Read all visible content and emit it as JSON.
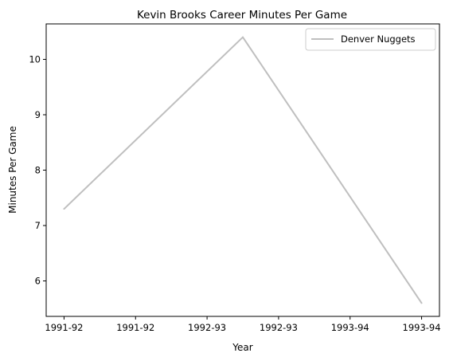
{
  "chart_data": {
    "type": "line",
    "title": "Kevin Brooks  Career Minutes Per Game",
    "xlabel": "Year",
    "ylabel": "Minutes Per Game",
    "x": [
      0,
      1,
      2
    ],
    "x_tick_positions": [
      0,
      0.4,
      0.8,
      1.2,
      1.6,
      2.0
    ],
    "x_tick_labels": [
      "1991-92",
      "1991-92",
      "1992-93",
      "1992-93",
      "1993-94",
      "1993-94"
    ],
    "xlim": [
      -0.1,
      2.1
    ],
    "y_ticks": [
      6,
      7,
      8,
      9,
      10
    ],
    "ylim": [
      5.36,
      10.64
    ],
    "series": [
      {
        "name": "Denver Nuggets",
        "values": [
          7.3,
          10.4,
          5.6
        ],
        "color": "#bfbfbf"
      }
    ],
    "legend_position": "upper-right",
    "grid": false
  }
}
